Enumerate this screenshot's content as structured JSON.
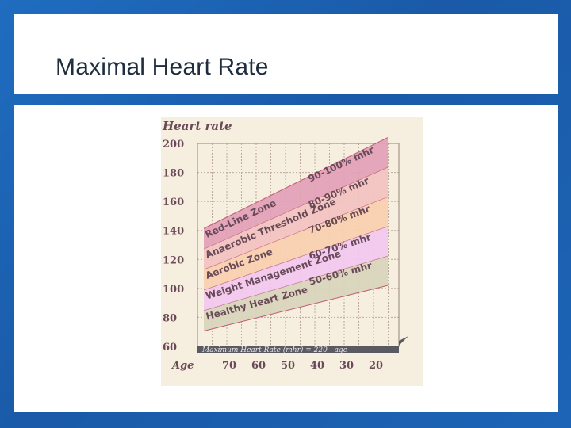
{
  "slide": {
    "title": "Maximal Heart Rate"
  },
  "colors": {
    "background": "#1c63b4",
    "panel": "#ffffff",
    "title_text": "#1f2d3d",
    "chart_bg": "#f6eede",
    "grid": "#bda99a",
    "label_ink": "#6a4a58"
  },
  "chart_data": {
    "type": "area",
    "title": "Heart rate",
    "xlabel": "Age",
    "ylabel": "",
    "x": [
      70,
      60,
      50,
      40,
      30,
      20
    ],
    "x_tick_labels": [
      "70",
      "60",
      "50",
      "40",
      "30",
      "20"
    ],
    "ylim": [
      60,
      200
    ],
    "y_ticks": [
      60,
      80,
      100,
      120,
      140,
      160,
      180,
      200
    ],
    "y_tick_labels": [
      "60",
      "80",
      "100",
      "120",
      "140",
      "160",
      "180",
      "200"
    ],
    "grid": true,
    "bottom_bar_label": "Maximum Heart Rate (mhr) = 220 - age",
    "series": [
      {
        "name": "Healthy Heart Zone",
        "pct_label": "50-60% mhr",
        "color": "#d8d5bc",
        "lower": [
          75,
          80,
          85,
          90,
          95,
          100
        ],
        "upper": [
          90,
          96,
          102,
          108,
          114,
          120
        ]
      },
      {
        "name": "Weight Management Zone",
        "pct_label": "60-70% mhr",
        "color": "#f2c8f0",
        "lower": [
          90,
          96,
          102,
          108,
          114,
          120
        ],
        "upper": [
          105,
          112,
          119,
          126,
          133,
          140
        ]
      },
      {
        "name": "Aerobic Zone",
        "pct_label": "70-80% mhr",
        "color": "#f8cfb0",
        "lower": [
          105,
          112,
          119,
          126,
          133,
          140
        ],
        "upper": [
          120,
          128,
          136,
          144,
          152,
          160
        ]
      },
      {
        "name": "Anaerobic Threshold Zone",
        "pct_label": "80-90% mhr",
        "color": "#f2c2c0",
        "lower": [
          120,
          128,
          136,
          144,
          152,
          160
        ],
        "upper": [
          135,
          144,
          153,
          162,
          171,
          180
        ]
      },
      {
        "name": "Red-Line Zone",
        "pct_label": "90-100% mhr",
        "color": "#e2a0b6",
        "lower": [
          135,
          144,
          153,
          162,
          171,
          180
        ],
        "upper": [
          150,
          160,
          170,
          180,
          190,
          200
        ]
      }
    ]
  }
}
